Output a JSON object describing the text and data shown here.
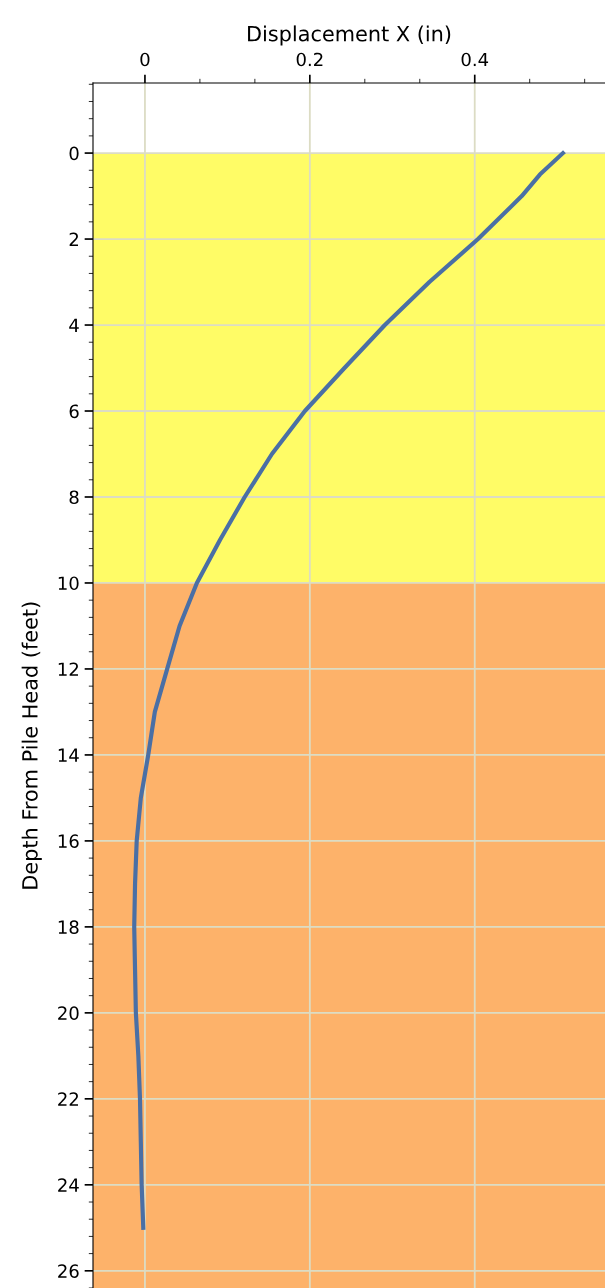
{
  "chart_data": {
    "type": "line",
    "xlabel": "Displacement X (in)",
    "ylabel": "Depth From Pile Head (feet)",
    "xlim": [
      -0.063,
      0.558
    ],
    "xticks": [
      {
        "value": 0,
        "label": "0"
      },
      0.2,
      0.4
    ],
    "ylim": [
      26.4,
      -1.63
    ],
    "yticks": [
      0,
      2,
      4,
      6,
      8,
      10,
      12,
      14,
      16,
      18,
      20,
      22,
      24,
      26
    ],
    "grid": true,
    "marker": "none",
    "line_style": "solid",
    "bands": [
      {
        "axis": "y",
        "from": 0,
        "to": 10,
        "color": "#fffc66"
      },
      {
        "axis": "y",
        "from": 10,
        "to": 26.4,
        "color": "#fdb26a"
      }
    ],
    "series": [
      {
        "color": "#4a6fa5",
        "x": [
          0.507,
          0.479,
          0.457,
          0.404,
          0.345,
          0.291,
          0.242,
          0.194,
          0.154,
          0.121,
          0.091,
          0.063,
          0.042,
          0.027,
          0.012,
          0.004,
          -0.005,
          -0.01,
          -0.012,
          -0.013,
          -0.012,
          -0.011,
          -0.008,
          -0.006,
          -0.005,
          -0.004,
          -0.002
        ],
        "values": [
          0,
          0.5,
          1,
          2,
          3,
          4,
          5,
          6,
          7,
          8,
          9,
          10,
          11,
          12,
          13,
          14,
          15,
          16,
          17,
          18,
          19,
          20,
          21,
          22,
          23,
          24,
          25
        ]
      }
    ]
  }
}
